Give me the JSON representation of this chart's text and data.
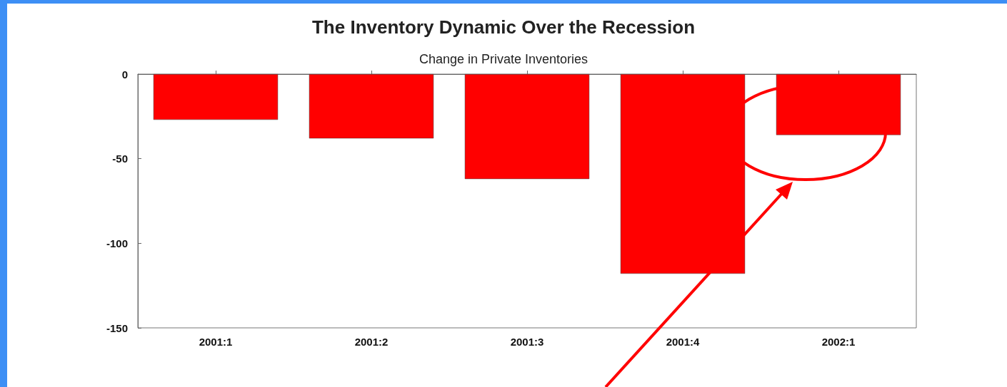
{
  "chart_data": {
    "type": "bar",
    "title": "The Inventory Dynamic Over the Recession",
    "subtitle": "Change in Private Inventories",
    "categories": [
      "2001:1",
      "2001:2",
      "2001:3",
      "2001:4",
      "2002:1"
    ],
    "values": [
      -27,
      -38,
      -62,
      -118,
      -36
    ],
    "color": "#ff0000",
    "ylim": [
      -150,
      0
    ],
    "yticks": [
      -150,
      -100,
      -50,
      0
    ],
    "grid": false
  }
}
